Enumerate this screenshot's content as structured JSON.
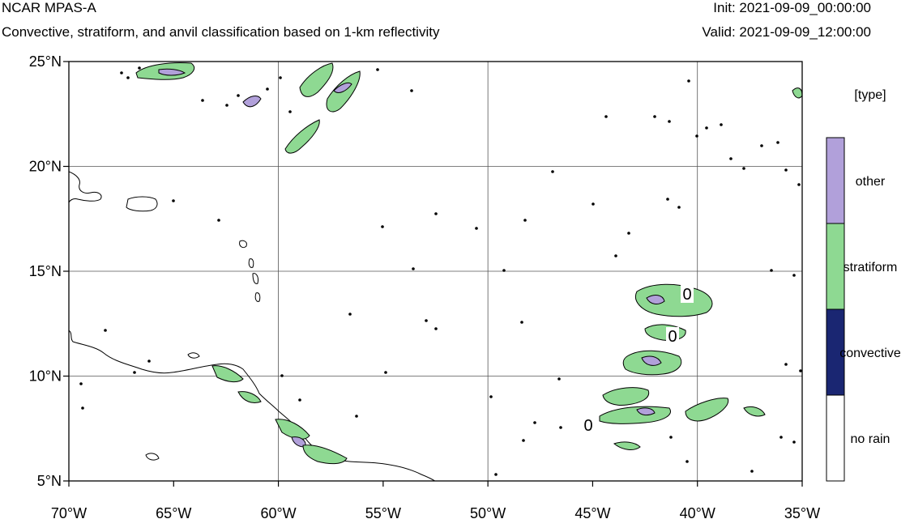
{
  "header": {
    "model_name": "NCAR MPAS-A",
    "subtitle": "Convective, stratiform, and anvil classification based on 1-km reflectivity",
    "init": "Init: 2021-09-09_00:00:00",
    "valid": "Valid: 2021-09-09_12:00:00"
  },
  "map": {
    "lon_range": [
      -70,
      -35
    ],
    "lat_range": [
      5,
      25
    ],
    "lon_ticks": [
      {
        "value": -70,
        "label": "70°W"
      },
      {
        "value": -65,
        "label": "65°W"
      },
      {
        "value": -60,
        "label": "60°W"
      },
      {
        "value": -55,
        "label": "55°W"
      },
      {
        "value": -50,
        "label": "50°W"
      },
      {
        "value": -45,
        "label": "45°W"
      },
      {
        "value": -40,
        "label": "40°W"
      },
      {
        "value": -35,
        "label": "35°W"
      }
    ],
    "lat_ticks": [
      {
        "value": 25,
        "label": "25°N"
      },
      {
        "value": 20,
        "label": "20°N"
      },
      {
        "value": 15,
        "label": "15°N"
      },
      {
        "value": 10,
        "label": "10°N"
      },
      {
        "value": 5,
        "label": "5°N"
      }
    ],
    "gridline_lons": [
      -60,
      -50,
      -40
    ],
    "gridline_lats": [
      20,
      15,
      10
    ],
    "contour_labels": [
      "0",
      "0",
      "0"
    ]
  },
  "legend": {
    "title": "[type]",
    "classes": [
      {
        "label": "other",
        "color": "#b1a0da"
      },
      {
        "label": "stratiform",
        "color": "#8ed992"
      },
      {
        "label": "convective",
        "color": "#1a2672"
      },
      {
        "label": "no rain",
        "color": "#ffffff"
      }
    ]
  },
  "colors": {
    "other": "#b1a0da",
    "stratiform": "#8ed992",
    "convective": "#1a2672",
    "no_rain": "#ffffff"
  }
}
